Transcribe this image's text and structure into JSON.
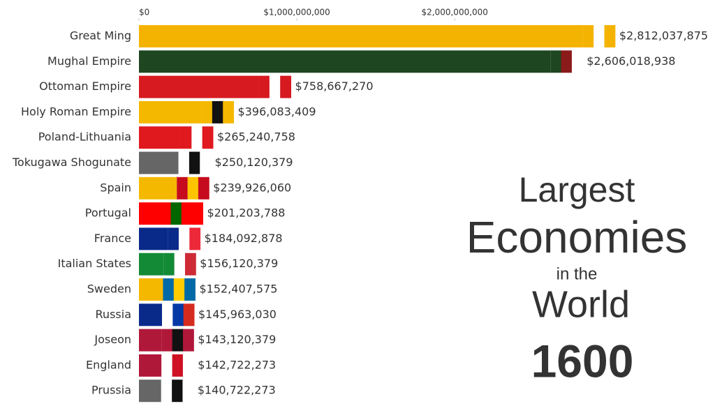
{
  "chart_data": {
    "type": "bar",
    "orientation": "horizontal",
    "title_lines": [
      "Largest",
      "Economies",
      "in the",
      "World"
    ],
    "title_colors": [
      "#1f4e9c",
      "#e0191f",
      "#333333",
      "#4a4a4a"
    ],
    "year": "1600",
    "categories": [
      "Great Ming",
      "Mughal Empire",
      "Ottoman Empire",
      "Holy Roman Empire",
      "Poland-Lithuania",
      "Tokugawa Shogunate",
      "Spain",
      "Portugal",
      "France",
      "Italian States",
      "Sweden",
      "Russia",
      "Joseon",
      "England",
      "Prussia"
    ],
    "values": [
      2812037875,
      2606018938,
      758667270,
      396083409,
      265240758,
      250120379,
      239926060,
      201203788,
      184092878,
      156120379,
      152407575,
      145963030,
      143120379,
      142722273,
      140722273
    ],
    "value_labels": [
      "$2,812,037,875",
      "$2,606,018,938",
      "$758,667,270",
      "$396,083,409",
      "$265,240,758",
      "$250,120,379",
      "$239,926,060",
      "$201,203,788",
      "$184,092,878",
      "$156,120,379",
      "$152,407,575",
      "$145,963,030",
      "$143,120,379",
      "$142,722,273",
      "$140,722,273"
    ],
    "colors": [
      "#f5b301",
      "#1e4620",
      "#d71920",
      "#f5b800",
      "#e0191f",
      "#666666",
      "#f5b800",
      "#ff0000",
      "#0a2a8a",
      "#138a36",
      "#f5b800",
      "#0a2a8a",
      "#b0183a",
      "#b0183a",
      "#666666"
    ],
    "xlim": [
      0,
      3600000000
    ],
    "xticks": [
      {
        "value": 0,
        "label": "$0"
      },
      {
        "value": 1000000000,
        "label": "$1,000,000,000"
      },
      {
        "value": 2000000000,
        "label": "$2,000,000,000"
      }
    ]
  }
}
